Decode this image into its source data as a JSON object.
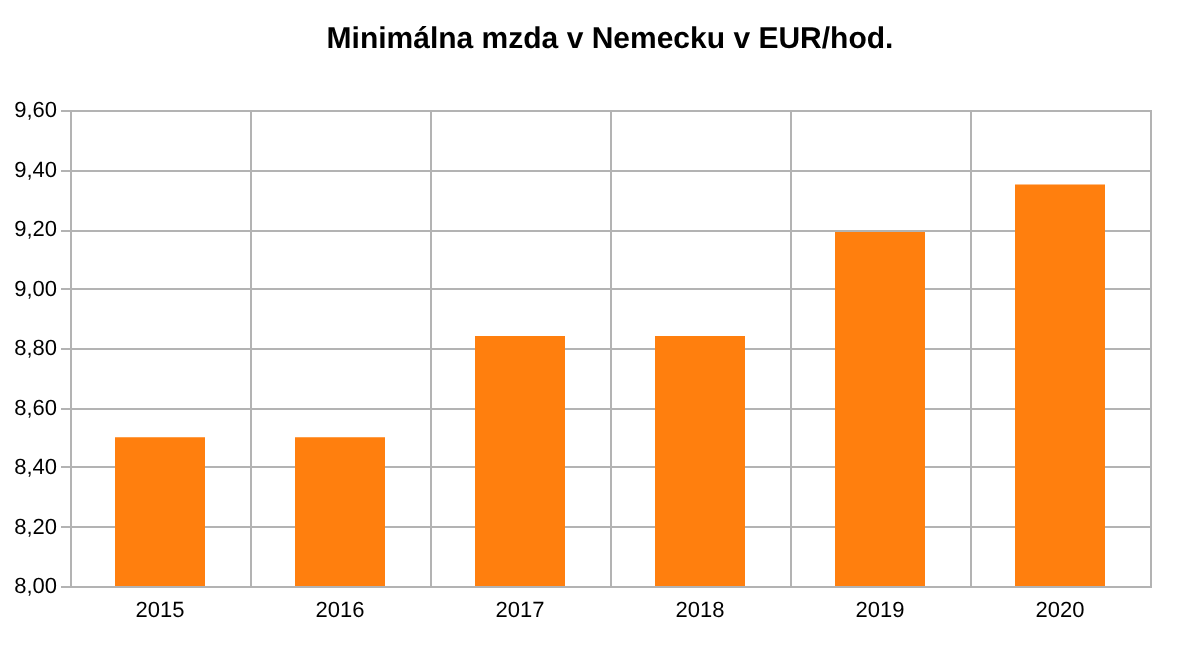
{
  "chart_data": {
    "type": "bar",
    "title": "Minimálna mzda v Nemecku v EUR/hod.",
    "categories": [
      "2015",
      "2016",
      "2017",
      "2018",
      "2019",
      "2020"
    ],
    "values": [
      8.5,
      8.5,
      8.84,
      8.84,
      9.19,
      9.35
    ],
    "color": "#ff7f0e",
    "ylim": [
      8.0,
      9.6
    ],
    "yticks": [
      {
        "value": 8.0,
        "label": "8,00"
      },
      {
        "value": 8.2,
        "label": "8,20"
      },
      {
        "value": 8.4,
        "label": "8,40"
      },
      {
        "value": 8.6,
        "label": "8,60"
      },
      {
        "value": 8.8,
        "label": "8,80"
      },
      {
        "value": 9.0,
        "label": "9,00"
      },
      {
        "value": 9.2,
        "label": "9,20"
      },
      {
        "value": 9.4,
        "label": "9,40"
      },
      {
        "value": 9.6,
        "label": "9,60"
      }
    ],
    "grid": true
  }
}
